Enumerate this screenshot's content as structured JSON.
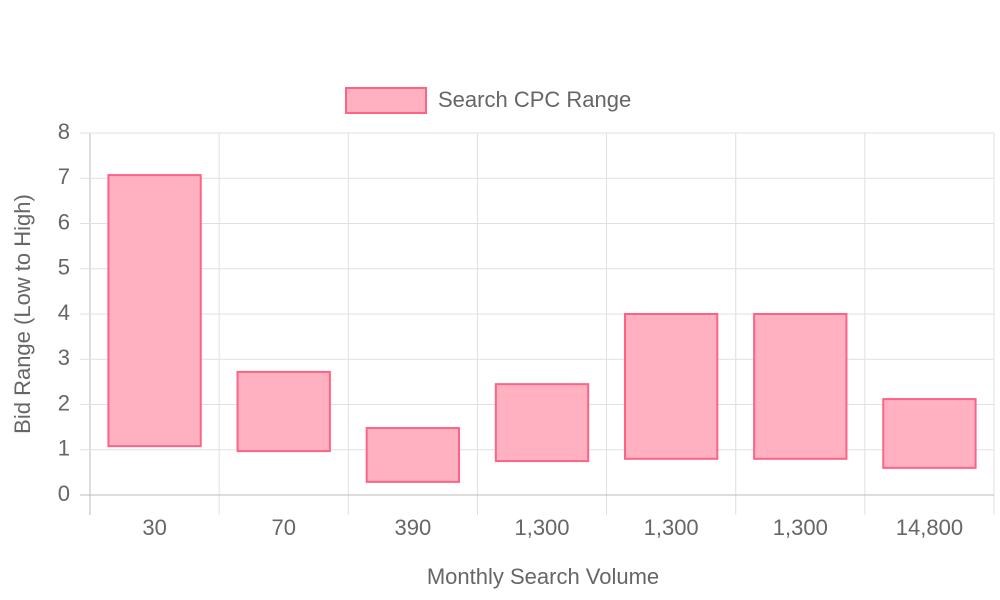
{
  "chart_data": {
    "type": "floating-bar",
    "categories": [
      "30",
      "70",
      "390",
      "1,300",
      "1,300",
      "1,300",
      "14,800"
    ],
    "series": [
      {
        "name": "Search CPC Range",
        "color": "#ff6384",
        "fill": "#ffb1c1",
        "values": [
          [
            1.08,
            7.07
          ],
          [
            0.97,
            2.72
          ],
          [
            0.29,
            1.48
          ],
          [
            0.75,
            2.45
          ],
          [
            0.8,
            4.0
          ],
          [
            0.8,
            4.0
          ],
          [
            0.6,
            2.12
          ]
        ]
      }
    ],
    "x_label": "Monthly Search Volume",
    "y_label": "Bid Range (Low to High)",
    "ylim": [
      0,
      8
    ],
    "yticks": [
      0,
      1,
      2,
      3,
      4,
      5,
      6,
      7,
      8
    ],
    "grid": true,
    "legend": "top"
  }
}
